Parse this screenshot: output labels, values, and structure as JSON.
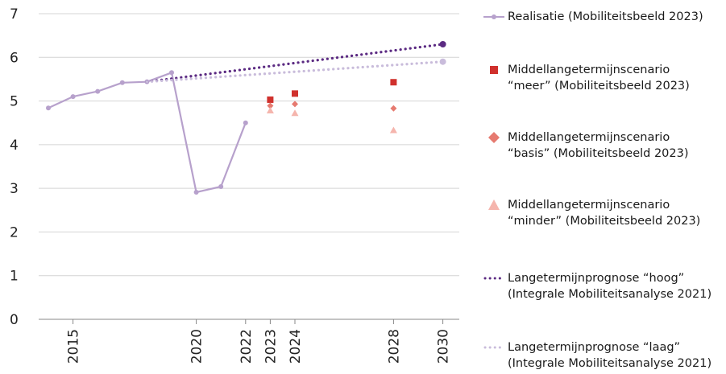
{
  "chart_data": {
    "type": "line",
    "title": "",
    "xlabel": "",
    "ylabel": "",
    "xlim": [
      2013.5,
      2030.4
    ],
    "ylim": [
      0,
      7
    ],
    "y_ticks": [
      "0",
      "1",
      "2",
      "3",
      "4",
      "5",
      "6",
      "7"
    ],
    "x_ticks": [
      2015,
      2020,
      2022,
      2023,
      2024,
      2028,
      2030
    ],
    "x_tick_labels": [
      "2015",
      "2020",
      "2022",
      "2023",
      "2024",
      "2028",
      "2030"
    ],
    "grid": "horizontal",
    "legend_position": "right",
    "series": [
      {
        "key": "realisatie",
        "name": "Realisatie (Mobiliteitsbeeld 2023)",
        "style": "line-markers",
        "color": "#b7a1cc",
        "points": [
          [
            2014,
            4.84
          ],
          [
            2015,
            5.1
          ],
          [
            2016,
            5.22
          ],
          [
            2017,
            5.42
          ],
          [
            2018,
            5.44
          ],
          [
            2019,
            5.65
          ],
          [
            2020,
            2.91
          ],
          [
            2021,
            3.04
          ],
          [
            2022,
            4.5
          ]
        ]
      },
      {
        "key": "meer",
        "name": "Middellangetermijnscenario\n“meer” (Mobiliteitsbeeld 2023)",
        "style": "square",
        "color": "#d0312d",
        "points": [
          [
            2023,
            5.03
          ],
          [
            2024,
            5.17
          ],
          [
            2028,
            5.43
          ]
        ]
      },
      {
        "key": "basis",
        "name": "Middellangetermijnscenario\n“basis” (Mobiliteitsbeeld 2023)",
        "style": "diamond",
        "color": "#e67a70",
        "points": [
          [
            2023,
            4.89
          ],
          [
            2024,
            4.93
          ],
          [
            2028,
            4.83
          ]
        ]
      },
      {
        "key": "minder",
        "name": "Middellangetermijnscenario\n“minder” (Mobiliteitsbeeld 2023)",
        "style": "triangle",
        "color": "#f5b5ad",
        "points": [
          [
            2023,
            4.78
          ],
          [
            2024,
            4.72
          ],
          [
            2028,
            4.33
          ]
        ]
      },
      {
        "key": "hoog",
        "name": "Langetermijnprognose “hoog”\n(Integrale Mobiliteitsanalyse 2021)",
        "style": "dotted",
        "color": "#5b2a82",
        "points": [
          [
            2018,
            5.44
          ],
          [
            2030,
            6.3
          ]
        ],
        "end_marker": true
      },
      {
        "key": "laag",
        "name": "Langetermijnprognose “laag”\n(Integrale Mobiliteitsanalyse 2021)",
        "style": "dotted",
        "color": "#c9bcdb",
        "points": [
          [
            2018,
            5.44
          ],
          [
            2030,
            5.9
          ]
        ],
        "end_marker": true
      }
    ]
  },
  "colors": {
    "axis": "#888888",
    "grid": "#d4d4d4"
  }
}
